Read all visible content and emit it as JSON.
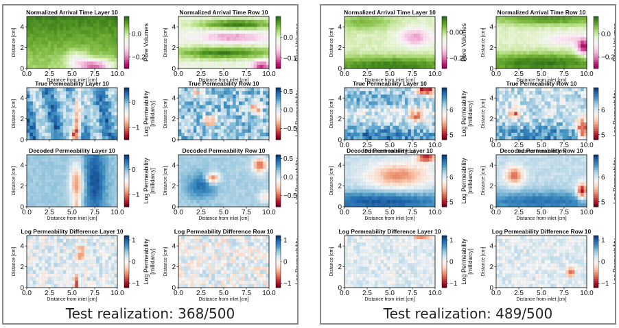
{
  "colors": {
    "prv": [
      "#8e0152",
      "#c51b7d",
      "#de77ae",
      "#f1b6da",
      "#fde0ef",
      "#f7f7f7",
      "#e6f5d0",
      "#b8e186",
      "#7fbc41",
      "#4d9221",
      "#276419"
    ],
    "rdbu": [
      "#67001f",
      "#b2182b",
      "#d6604d",
      "#f4a582",
      "#fddbc7",
      "#f7f7f7",
      "#d1e5f0",
      "#92c5de",
      "#4393c3",
      "#2166ac",
      "#053061"
    ]
  },
  "panels": [
    {
      "caption": "Test realization: 368/500",
      "rows": [
        {
          "titles": [
            "Normalized Arrival Time Layer 10",
            "Normalized Arrival Time Row 10"
          ],
          "cbar_label": "Pore Volumes",
          "cmap": "prv",
          "cbar_ticks": [
            {
              "v": 0.0,
              "t": "0.0"
            },
            {
              "v": -0.2,
              "t": "−0.2"
            }
          ],
          "cbar_ticks_2": [
            {
              "v": 0.0,
              "t": "0.0"
            },
            {
              "v": -0.1,
              "t": "−0.1"
            }
          ],
          "vmin": -0.3,
          "vmax": 0.15,
          "vmin2": -0.15,
          "vmax2": 0.1,
          "show_xlabel": true,
          "pat": [
            "arrival_a",
            "arrival_b"
          ]
        },
        {
          "titles": [
            "True Permeability Layer 10",
            "True Permeability Row 10"
          ],
          "cbar_label": "Log Permeability [millidarcy]",
          "cmap": "rdbu",
          "cbar_ticks": [
            {
              "v": 0,
              "t": "0"
            },
            {
              "v": -1,
              "t": "−1"
            }
          ],
          "cbar_ticks_2": [
            {
              "v": 0.5,
              "t": "0.5"
            },
            {
              "v": 0.0,
              "t": "0.0"
            },
            {
              "v": -0.5,
              "t": "−0.5"
            }
          ],
          "vmin": -1.5,
          "vmax": 0.6,
          "vmin2": -0.8,
          "vmax2": 0.6,
          "show_xlabel": false,
          "pat": [
            "perm_a",
            "perm_b"
          ]
        },
        {
          "titles": [
            "Decoded Permeability Layer 10",
            "Decoded Permeability Row 10"
          ],
          "cbar_label": "Log Permeability [millidarcy]",
          "cmap": "rdbu",
          "cbar_ticks": [
            {
              "v": 0,
              "t": "0"
            },
            {
              "v": -1,
              "t": "−1"
            }
          ],
          "cbar_ticks_2": [
            {
              "v": 0.5,
              "t": "0.5"
            },
            {
              "v": 0.0,
              "t": "0.0"
            },
            {
              "v": -0.5,
              "t": "−0.5"
            }
          ],
          "vmin": -1.5,
          "vmax": 0.6,
          "vmin2": -0.8,
          "vmax2": 0.6,
          "show_xlabel": true,
          "pat": [
            "dec_a",
            "dec_b"
          ]
        },
        {
          "titles": [
            "Log Permeability Difference Layer 10",
            "Log Permeability Difference Row 10"
          ],
          "cbar_label": "Log Permeability [millidarcy]",
          "cmap": "rdbu",
          "cbar_ticks": [
            {
              "v": 1,
              "t": "1"
            },
            {
              "v": 0,
              "t": "0"
            },
            {
              "v": -1,
              "t": "−1"
            }
          ],
          "cbar_ticks_2": [
            {
              "v": 1,
              "t": "1"
            },
            {
              "v": 0,
              "t": "0"
            },
            {
              "v": -1,
              "t": "−1"
            }
          ],
          "vmin": -1.2,
          "vmax": 1.2,
          "vmin2": -1.2,
          "vmax2": 1.2,
          "show_xlabel": true,
          "pat": [
            "diff_a",
            "diff_b"
          ]
        }
      ]
    },
    {
      "caption": "Test realization: 489/500",
      "rows": [
        {
          "titles": [
            "Normalized Arrival Time Layer 10",
            "Normalized Arrival Time Row 10"
          ],
          "cbar_label": "Pore Volumes",
          "cmap": "prv",
          "cbar_ticks": [
            {
              "v": 0.0,
              "t": "0.00"
            },
            {
              "v": -0.25,
              "t": "−0.25"
            }
          ],
          "cbar_ticks_2": [
            {
              "v": 0.0,
              "t": "0.0"
            },
            {
              "v": -0.2,
              "t": "−0.2"
            }
          ],
          "vmin": -0.35,
          "vmax": 0.15,
          "vmin2": -0.3,
          "vmax2": 0.15,
          "show_xlabel": true,
          "pat": [
            "arrival_c",
            "arrival_d"
          ]
        },
        {
          "titles": [
            "True Permeability Layer 10",
            "True Permeability Row 10"
          ],
          "cbar_label": "Log Permeability [millidarcy]",
          "cmap": "rdbu",
          "cbar_ticks": [
            {
              "v": 6,
              "t": "6"
            },
            {
              "v": 5,
              "t": "5"
            }
          ],
          "cbar_ticks_2": [
            {
              "v": 6,
              "t": "6"
            },
            {
              "v": 5,
              "t": "5"
            }
          ],
          "vmin": 4.8,
          "vmax": 6.9,
          "vmin2": 4.8,
          "vmax2": 6.9,
          "show_xlabel": true,
          "pat": [
            "perm_c",
            "perm_d"
          ]
        },
        {
          "titles": [
            "Decoded Permeability Layer 10",
            "Decoded Permeability Row 10"
          ],
          "cbar_label": "Log Permeability [millidarcy]",
          "cmap": "rdbu",
          "cbar_ticks": [
            {
              "v": 6,
              "t": "6"
            },
            {
              "v": 5,
              "t": "5"
            }
          ],
          "cbar_ticks_2": [
            {
              "v": 6,
              "t": "6"
            },
            {
              "v": 5,
              "t": "5"
            }
          ],
          "vmin": 4.8,
          "vmax": 6.9,
          "vmin2": 4.8,
          "vmax2": 6.9,
          "show_xlabel": true,
          "pat": [
            "dec_c",
            "dec_d"
          ]
        },
        {
          "titles": [
            "Log Permeability Difference Layer 10",
            "Log Permeability Difference Row 10"
          ],
          "cbar_label": "Log Permeability [millidarcy]",
          "cmap": "rdbu",
          "cbar_ticks": [
            {
              "v": 1,
              "t": "1"
            },
            {
              "v": 0,
              "t": "0"
            },
            {
              "v": -1,
              "t": "−1"
            }
          ],
          "cbar_ticks_2": [
            {
              "v": 1,
              "t": "1"
            },
            {
              "v": 0,
              "t": "0"
            },
            {
              "v": -1,
              "t": "−1"
            }
          ],
          "vmin": -1.2,
          "vmax": 1.2,
          "vmin2": -1.2,
          "vmax2": 1.2,
          "show_xlabel": true,
          "pat": [
            "diff_c",
            "diff_d"
          ]
        }
      ]
    }
  ],
  "axes": {
    "xticks": [
      "0.0",
      "2.5",
      "5.0",
      "7.5",
      "10.0"
    ],
    "yticks": [
      "0",
      "2",
      "4"
    ],
    "xlabel": "Distance from inlet [cm]",
    "ylabel": "Distance [cm]"
  },
  "chart_data": [
    {
      "type": "heatmap",
      "title": "Normalized Arrival Time Layer 10",
      "xlabel": "Distance from inlet [cm]",
      "ylabel": "Distance [cm]",
      "xlim": [
        0,
        10
      ],
      "ylim": [
        0,
        5
      ],
      "colorbar_label": "Pore Volumes",
      "colorbar_ticks": [
        0.0,
        -0.2
      ]
    },
    {
      "type": "heatmap",
      "title": "Normalized Arrival Time Row 10",
      "xlim": [
        0,
        10
      ],
      "ylim": [
        0,
        5
      ],
      "colorbar_label": "Pore Volumes",
      "colorbar_ticks": [
        0.0,
        -0.1
      ]
    },
    {
      "type": "heatmap",
      "title": "True Permeability Layer 10",
      "colorbar_label": "Log Permeability [millidarcy]",
      "colorbar_ticks": [
        0,
        -1
      ]
    },
    {
      "type": "heatmap",
      "title": "True Permeability Row 10",
      "colorbar_label": "Log Permeability [millidarcy]",
      "colorbar_ticks": [
        0.5,
        0.0,
        -0.5
      ]
    },
    {
      "type": "heatmap",
      "title": "Decoded Permeability Layer 10",
      "colorbar_ticks": [
        0,
        -1
      ]
    },
    {
      "type": "heatmap",
      "title": "Decoded Permeability Row 10",
      "colorbar_ticks": [
        0.5,
        0.0,
        -0.5
      ]
    },
    {
      "type": "heatmap",
      "title": "Log Permeability Difference Layer 10",
      "colorbar_ticks": [
        1,
        0,
        -1
      ]
    },
    {
      "type": "heatmap",
      "title": "Log Permeability Difference Row 10",
      "colorbar_ticks": [
        1,
        0,
        -1
      ]
    },
    {
      "type": "heatmap",
      "title": "Normalized Arrival Time Layer 10",
      "colorbar_label": "Pore Volumes",
      "colorbar_ticks": [
        0.0,
        -0.25
      ]
    },
    {
      "type": "heatmap",
      "title": "Normalized Arrival Time Row 10",
      "colorbar_label": "Pore Volumes",
      "colorbar_ticks": [
        0.0,
        -0.2
      ]
    },
    {
      "type": "heatmap",
      "title": "True Permeability Layer 10",
      "colorbar_ticks": [
        6,
        5
      ]
    },
    {
      "type": "heatmap",
      "title": "True Permeability Row 10",
      "colorbar_ticks": [
        6,
        5
      ]
    },
    {
      "type": "heatmap",
      "title": "Decoded Permeability Layer 10",
      "colorbar_ticks": [
        6,
        5
      ]
    },
    {
      "type": "heatmap",
      "title": "Decoded Permeability Row 10",
      "colorbar_ticks": [
        6,
        5
      ]
    },
    {
      "type": "heatmap",
      "title": "Log Permeability Difference Layer 10",
      "colorbar_ticks": [
        1,
        0,
        -1
      ]
    },
    {
      "type": "heatmap",
      "title": "Log Permeability Difference Row 10",
      "colorbar_ticks": [
        1,
        0,
        -1
      ]
    }
  ]
}
